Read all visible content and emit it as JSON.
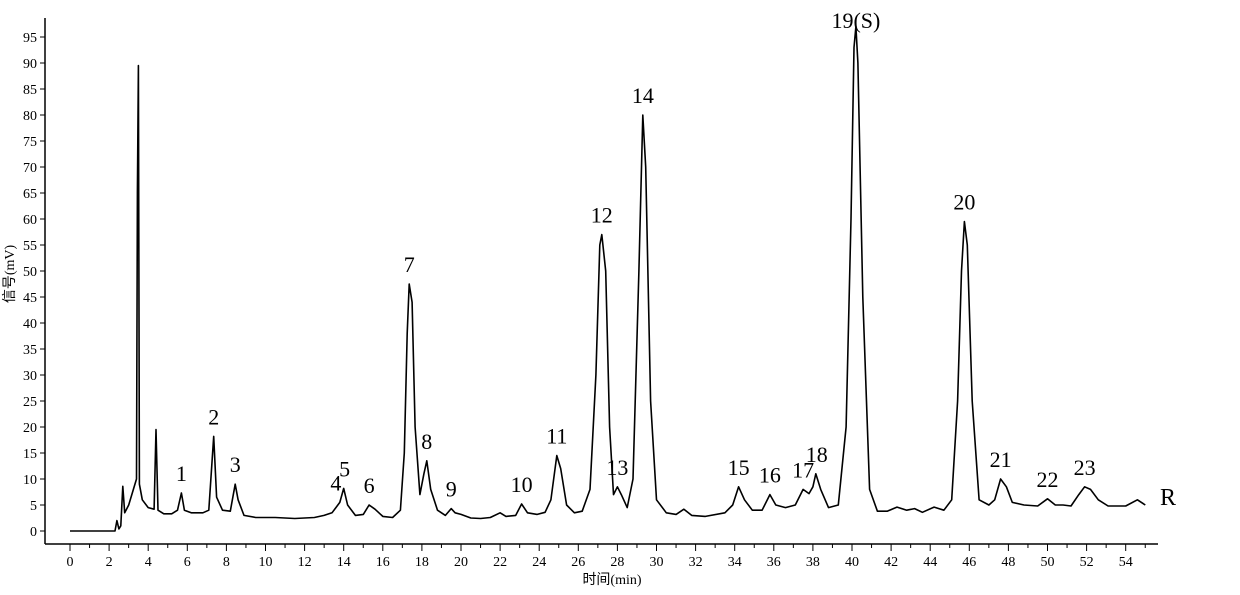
{
  "chart_data": {
    "type": "line",
    "title": "",
    "xlabel": "时间(min)",
    "ylabel": "信号(mV)",
    "xlim": [
      0,
      55
    ],
    "ylim": [
      0,
      97
    ],
    "x_ticks": [
      0,
      2,
      4,
      6,
      8,
      10,
      12,
      14,
      16,
      18,
      20,
      22,
      24,
      26,
      28,
      30,
      32,
      34,
      36,
      38,
      40,
      42,
      44,
      46,
      48,
      50,
      52,
      54
    ],
    "y_ticks": [
      0,
      5,
      10,
      15,
      20,
      25,
      30,
      35,
      40,
      45,
      50,
      55,
      60,
      65,
      70,
      75,
      80,
      85,
      90,
      95
    ],
    "grid": false,
    "trace_label": "R",
    "trace_color": "#000000",
    "series": [
      {
        "name": "",
        "points": [
          [
            0.0,
            0.0
          ],
          [
            2.3,
            0.0
          ],
          [
            2.4,
            2.0
          ],
          [
            2.5,
            0.4
          ],
          [
            2.6,
            1.0
          ],
          [
            2.7,
            8.6
          ],
          [
            2.8,
            3.5
          ],
          [
            3.0,
            5.0
          ],
          [
            3.2,
            7.5
          ],
          [
            3.4,
            10.0
          ],
          [
            3.45,
            65.0
          ],
          [
            3.5,
            89.5
          ],
          [
            3.55,
            9.0
          ],
          [
            3.7,
            6.0
          ],
          [
            4.0,
            4.5
          ],
          [
            4.3,
            4.2
          ],
          [
            4.4,
            19.5
          ],
          [
            4.5,
            4.0
          ],
          [
            4.8,
            3.3
          ],
          [
            5.2,
            3.3
          ],
          [
            5.5,
            4.0
          ],
          [
            5.7,
            7.3
          ],
          [
            5.85,
            4.0
          ],
          [
            6.2,
            3.5
          ],
          [
            6.8,
            3.5
          ],
          [
            7.1,
            4.0
          ],
          [
            7.35,
            18.2
          ],
          [
            7.5,
            6.5
          ],
          [
            7.8,
            4.0
          ],
          [
            8.2,
            3.8
          ],
          [
            8.45,
            9.0
          ],
          [
            8.6,
            6.0
          ],
          [
            8.9,
            3.0
          ],
          [
            9.5,
            2.6
          ],
          [
            10.5,
            2.6
          ],
          [
            11.5,
            2.4
          ],
          [
            12.5,
            2.6
          ],
          [
            13.0,
            3.0
          ],
          [
            13.4,
            3.5
          ],
          [
            13.6,
            4.5
          ],
          [
            13.8,
            5.5
          ],
          [
            14.0,
            8.2
          ],
          [
            14.2,
            5.0
          ],
          [
            14.6,
            3.0
          ],
          [
            15.0,
            3.2
          ],
          [
            15.3,
            5.0
          ],
          [
            15.6,
            4.2
          ],
          [
            16.0,
            2.8
          ],
          [
            16.5,
            2.6
          ],
          [
            16.9,
            4.0
          ],
          [
            17.1,
            15.0
          ],
          [
            17.25,
            38.0
          ],
          [
            17.35,
            47.5
          ],
          [
            17.5,
            44.0
          ],
          [
            17.65,
            20.0
          ],
          [
            17.9,
            7.0
          ],
          [
            18.1,
            11.0
          ],
          [
            18.25,
            13.5
          ],
          [
            18.45,
            8.0
          ],
          [
            18.8,
            4.0
          ],
          [
            19.2,
            3.0
          ],
          [
            19.5,
            4.3
          ],
          [
            19.7,
            3.5
          ],
          [
            20.0,
            3.2
          ],
          [
            20.5,
            2.5
          ],
          [
            21.0,
            2.4
          ],
          [
            21.5,
            2.6
          ],
          [
            22.0,
            3.5
          ],
          [
            22.3,
            2.8
          ],
          [
            22.8,
            3.0
          ],
          [
            23.1,
            5.2
          ],
          [
            23.4,
            3.5
          ],
          [
            23.9,
            3.2
          ],
          [
            24.3,
            3.6
          ],
          [
            24.6,
            6.0
          ],
          [
            24.9,
            14.5
          ],
          [
            25.1,
            12.0
          ],
          [
            25.4,
            5.0
          ],
          [
            25.8,
            3.5
          ],
          [
            26.2,
            3.8
          ],
          [
            26.6,
            8.0
          ],
          [
            26.9,
            30.0
          ],
          [
            27.1,
            55.0
          ],
          [
            27.2,
            57.0
          ],
          [
            27.4,
            50.0
          ],
          [
            27.6,
            20.0
          ],
          [
            27.8,
            7.0
          ],
          [
            28.0,
            8.5
          ],
          [
            28.2,
            7.0
          ],
          [
            28.5,
            4.5
          ],
          [
            28.8,
            10.0
          ],
          [
            29.1,
            50.0
          ],
          [
            29.3,
            80.0
          ],
          [
            29.45,
            70.0
          ],
          [
            29.7,
            25.0
          ],
          [
            30.0,
            6.0
          ],
          [
            30.5,
            3.5
          ],
          [
            31.0,
            3.2
          ],
          [
            31.4,
            4.2
          ],
          [
            31.8,
            3.0
          ],
          [
            32.5,
            2.8
          ],
          [
            33.5,
            3.5
          ],
          [
            33.9,
            5.0
          ],
          [
            34.2,
            8.5
          ],
          [
            34.5,
            6.0
          ],
          [
            34.9,
            4.0
          ],
          [
            35.4,
            4.0
          ],
          [
            35.8,
            7.0
          ],
          [
            36.1,
            5.0
          ],
          [
            36.6,
            4.5
          ],
          [
            37.1,
            5.0
          ],
          [
            37.5,
            8.0
          ],
          [
            37.8,
            7.2
          ],
          [
            38.0,
            8.5
          ],
          [
            38.15,
            11.0
          ],
          [
            38.4,
            8.0
          ],
          [
            38.8,
            4.5
          ],
          [
            39.3,
            5.0
          ],
          [
            39.7,
            20.0
          ],
          [
            39.95,
            60.0
          ],
          [
            40.1,
            93.0
          ],
          [
            40.2,
            97.0
          ],
          [
            40.3,
            90.0
          ],
          [
            40.55,
            45.0
          ],
          [
            40.9,
            8.0
          ],
          [
            41.3,
            3.8
          ],
          [
            41.8,
            3.8
          ],
          [
            42.3,
            4.6
          ],
          [
            42.8,
            4.0
          ],
          [
            43.2,
            4.3
          ],
          [
            43.6,
            3.6
          ],
          [
            44.2,
            4.6
          ],
          [
            44.7,
            4.0
          ],
          [
            45.1,
            6.0
          ],
          [
            45.4,
            25.0
          ],
          [
            45.6,
            50.0
          ],
          [
            45.75,
            59.5
          ],
          [
            45.9,
            55.0
          ],
          [
            46.15,
            25.0
          ],
          [
            46.5,
            6.0
          ],
          [
            47.0,
            5.0
          ],
          [
            47.3,
            6.0
          ],
          [
            47.6,
            10.0
          ],
          [
            47.9,
            8.5
          ],
          [
            48.2,
            5.5
          ],
          [
            48.8,
            5.0
          ],
          [
            49.5,
            4.8
          ],
          [
            50.0,
            6.2
          ],
          [
            50.4,
            5.0
          ],
          [
            50.8,
            5.0
          ],
          [
            51.2,
            4.8
          ],
          [
            51.6,
            7.0
          ],
          [
            51.9,
            8.5
          ],
          [
            52.2,
            8.0
          ],
          [
            52.6,
            6.0
          ],
          [
            53.1,
            4.8
          ],
          [
            54.0,
            4.8
          ],
          [
            54.6,
            6.0
          ],
          [
            55.0,
            5.0
          ]
        ]
      }
    ],
    "peak_labels": [
      {
        "text": "1",
        "x": 5.7,
        "y": 7.3
      },
      {
        "text": "2",
        "x": 7.35,
        "y": 18.2
      },
      {
        "text": "3",
        "x": 8.45,
        "y": 9.0
      },
      {
        "text": "4",
        "x": 13.6,
        "y": 5.5
      },
      {
        "text": "5",
        "x": 14.05,
        "y": 8.2
      },
      {
        "text": "6",
        "x": 15.3,
        "y": 5.0
      },
      {
        "text": "7",
        "x": 17.35,
        "y": 47.5
      },
      {
        "text": "8",
        "x": 18.25,
        "y": 13.5
      },
      {
        "text": "9",
        "x": 19.5,
        "y": 4.3
      },
      {
        "text": "10",
        "x": 23.1,
        "y": 5.2
      },
      {
        "text": "11",
        "x": 24.9,
        "y": 14.5
      },
      {
        "text": "12",
        "x": 27.2,
        "y": 57.0
      },
      {
        "text": "13",
        "x": 28.0,
        "y": 8.5
      },
      {
        "text": "14",
        "x": 29.3,
        "y": 80.0
      },
      {
        "text": "15",
        "x": 34.2,
        "y": 8.5
      },
      {
        "text": "16",
        "x": 35.8,
        "y": 7.0
      },
      {
        "text": "17",
        "x": 37.5,
        "y": 8.0
      },
      {
        "text": "18",
        "x": 38.2,
        "y": 11.0
      },
      {
        "text": "19(S)",
        "x": 40.2,
        "y": 97.0
      },
      {
        "text": "20",
        "x": 45.75,
        "y": 59.5
      },
      {
        "text": "21",
        "x": 47.6,
        "y": 10.0
      },
      {
        "text": "22",
        "x": 50.0,
        "y": 6.2
      },
      {
        "text": "23",
        "x": 51.9,
        "y": 8.5
      }
    ]
  }
}
